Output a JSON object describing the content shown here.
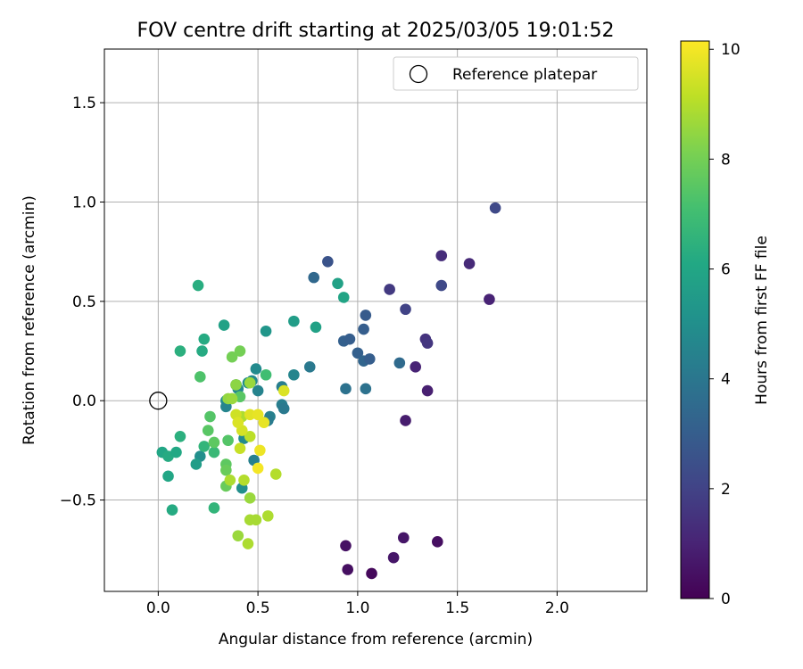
{
  "chart_data": {
    "type": "scatter",
    "title": "FOV centre drift starting at 2025/03/05 19:01:52",
    "xlabel": "Angular distance from reference (arcmin)",
    "ylabel": "Rotation from reference (arcmin)",
    "xlim": [
      -0.27,
      2.45
    ],
    "ylim": [
      -0.96,
      1.77
    ],
    "xticks": [
      0.0,
      0.5,
      1.0,
      1.5,
      2.0
    ],
    "xtick_labels": [
      "0.0",
      "0.5",
      "1.0",
      "1.5",
      "2.0"
    ],
    "yticks": [
      -0.5,
      0.0,
      0.5,
      1.0,
      1.5
    ],
    "ytick_labels": [
      "−0.5",
      "0.0",
      "0.5",
      "1.0",
      "1.5"
    ],
    "grid": true,
    "legend": {
      "placement": "top-right",
      "label": "Reference platepar"
    },
    "reference_point": {
      "x": 0.0,
      "y": 0.0
    },
    "colorbar": {
      "label": "Hours from first FF file",
      "range": [
        0,
        10.15
      ],
      "ticks": [
        0,
        2,
        4,
        6,
        8,
        10
      ],
      "tick_labels": [
        "0",
        "2",
        "4",
        "6",
        "8",
        "10"
      ],
      "colormap": "viridis"
    },
    "points": [
      {
        "x": 1.07,
        "y": -0.87,
        "h": 0.2
      },
      {
        "x": 0.95,
        "y": -0.85,
        "h": 0.4
      },
      {
        "x": 0.94,
        "y": -0.73,
        "h": 0.5
      },
      {
        "x": 1.18,
        "y": -0.79,
        "h": 0.6
      },
      {
        "x": 1.23,
        "y": -0.69,
        "h": 0.6
      },
      {
        "x": 1.4,
        "y": -0.71,
        "h": 0.4
      },
      {
        "x": 1.24,
        "y": -0.1,
        "h": 0.8
      },
      {
        "x": 1.35,
        "y": 0.05,
        "h": 0.9
      },
      {
        "x": 1.29,
        "y": 0.17,
        "h": 1.0
      },
      {
        "x": 1.34,
        "y": 0.31,
        "h": 1.5
      },
      {
        "x": 1.35,
        "y": 0.29,
        "h": 1.6
      },
      {
        "x": 1.66,
        "y": 0.51,
        "h": 1.0
      },
      {
        "x": 1.56,
        "y": 0.69,
        "h": 1.2
      },
      {
        "x": 1.42,
        "y": 0.73,
        "h": 1.3
      },
      {
        "x": 1.69,
        "y": 0.97,
        "h": 2.2
      },
      {
        "x": 1.42,
        "y": 0.58,
        "h": 2.2
      },
      {
        "x": 1.24,
        "y": 0.46,
        "h": 2.0
      },
      {
        "x": 1.16,
        "y": 0.56,
        "h": 1.7
      },
      {
        "x": 0.85,
        "y": 0.7,
        "h": 2.6
      },
      {
        "x": 1.04,
        "y": 0.43,
        "h": 2.9
      },
      {
        "x": 1.03,
        "y": 0.36,
        "h": 3.0
      },
      {
        "x": 0.93,
        "y": 0.3,
        "h": 3.1
      },
      {
        "x": 0.96,
        "y": 0.31,
        "h": 3.0
      },
      {
        "x": 1.0,
        "y": 0.24,
        "h": 3.1
      },
      {
        "x": 1.03,
        "y": 0.2,
        "h": 3.3
      },
      {
        "x": 1.06,
        "y": 0.21,
        "h": 3.0
      },
      {
        "x": 1.21,
        "y": 0.19,
        "h": 3.5
      },
      {
        "x": 0.78,
        "y": 0.62,
        "h": 3.4
      },
      {
        "x": 0.94,
        "y": 0.06,
        "h": 3.8
      },
      {
        "x": 1.04,
        "y": 0.06,
        "h": 3.8
      },
      {
        "x": 0.76,
        "y": 0.17,
        "h": 4.1
      },
      {
        "x": 0.68,
        "y": 0.13,
        "h": 4.6
      },
      {
        "x": 0.62,
        "y": 0.07,
        "h": 4.3
      },
      {
        "x": 0.62,
        "y": -0.02,
        "h": 4.3
      },
      {
        "x": 0.63,
        "y": -0.04,
        "h": 4.1
      },
      {
        "x": 0.56,
        "y": -0.08,
        "h": 4.4
      },
      {
        "x": 0.55,
        "y": -0.1,
        "h": 4.2
      },
      {
        "x": 0.5,
        "y": 0.05,
        "h": 4.5
      },
      {
        "x": 0.49,
        "y": 0.16,
        "h": 4.8
      },
      {
        "x": 0.47,
        "y": 0.1,
        "h": 4.8
      },
      {
        "x": 0.45,
        "y": 0.09,
        "h": 5.0
      },
      {
        "x": 0.4,
        "y": 0.06,
        "h": 4.7
      },
      {
        "x": 0.39,
        "y": 0.08,
        "h": 5.0
      },
      {
        "x": 0.34,
        "y": 0.0,
        "h": 4.9
      },
      {
        "x": 0.34,
        "y": -0.03,
        "h": 4.6
      },
      {
        "x": 0.48,
        "y": -0.3,
        "h": 4.4
      },
      {
        "x": 0.43,
        "y": -0.19,
        "h": 4.8
      },
      {
        "x": 0.42,
        "y": -0.44,
        "h": 5.0
      },
      {
        "x": 0.21,
        "y": -0.28,
        "h": 5.0
      },
      {
        "x": 0.19,
        "y": -0.32,
        "h": 5.6
      },
      {
        "x": 0.54,
        "y": 0.35,
        "h": 5.3
      },
      {
        "x": 0.68,
        "y": 0.4,
        "h": 5.6
      },
      {
        "x": 0.79,
        "y": 0.37,
        "h": 5.8
      },
      {
        "x": 0.9,
        "y": 0.59,
        "h": 5.8
      },
      {
        "x": 0.93,
        "y": 0.52,
        "h": 5.9
      },
      {
        "x": 0.33,
        "y": 0.38,
        "h": 5.8
      },
      {
        "x": 0.2,
        "y": 0.58,
        "h": 6.3
      },
      {
        "x": 0.23,
        "y": 0.31,
        "h": 6.2
      },
      {
        "x": 0.22,
        "y": 0.25,
        "h": 6.2
      },
      {
        "x": 0.11,
        "y": 0.25,
        "h": 6.4
      },
      {
        "x": 0.02,
        "y": -0.26,
        "h": 6.0
      },
      {
        "x": 0.05,
        "y": -0.28,
        "h": 6.2
      },
      {
        "x": 0.09,
        "y": -0.26,
        "h": 6.1
      },
      {
        "x": 0.11,
        "y": -0.18,
        "h": 6.4
      },
      {
        "x": 0.05,
        "y": -0.38,
        "h": 6.0
      },
      {
        "x": 0.07,
        "y": -0.55,
        "h": 6.2
      },
      {
        "x": 0.23,
        "y": -0.23,
        "h": 6.6
      },
      {
        "x": 0.28,
        "y": -0.26,
        "h": 6.8
      },
      {
        "x": 0.28,
        "y": -0.54,
        "h": 6.6
      },
      {
        "x": 0.54,
        "y": 0.13,
        "h": 7.0
      },
      {
        "x": 0.21,
        "y": 0.12,
        "h": 7.3
      },
      {
        "x": 0.41,
        "y": 0.02,
        "h": 7.5
      },
      {
        "x": 0.26,
        "y": -0.08,
        "h": 7.4
      },
      {
        "x": 0.25,
        "y": -0.15,
        "h": 7.5
      },
      {
        "x": 0.28,
        "y": -0.21,
        "h": 7.6
      },
      {
        "x": 0.34,
        "y": -0.32,
        "h": 7.6
      },
      {
        "x": 0.34,
        "y": -0.35,
        "h": 7.8
      },
      {
        "x": 0.34,
        "y": -0.43,
        "h": 7.8
      },
      {
        "x": 0.35,
        "y": -0.2,
        "h": 7.4
      },
      {
        "x": 0.37,
        "y": 0.22,
        "h": 8.0
      },
      {
        "x": 0.41,
        "y": 0.25,
        "h": 8.0
      },
      {
        "x": 0.39,
        "y": 0.08,
        "h": 8.4
      },
      {
        "x": 0.35,
        "y": 0.01,
        "h": 8.5
      },
      {
        "x": 0.37,
        "y": 0.01,
        "h": 8.6
      },
      {
        "x": 0.46,
        "y": 0.09,
        "h": 8.6
      },
      {
        "x": 0.42,
        "y": -0.08,
        "h": 8.9
      },
      {
        "x": 0.36,
        "y": -0.4,
        "h": 8.9
      },
      {
        "x": 0.43,
        "y": -0.4,
        "h": 9.0
      },
      {
        "x": 0.46,
        "y": -0.49,
        "h": 8.6
      },
      {
        "x": 0.4,
        "y": -0.68,
        "h": 8.6
      },
      {
        "x": 0.46,
        "y": -0.6,
        "h": 8.8
      },
      {
        "x": 0.49,
        "y": -0.6,
        "h": 8.8
      },
      {
        "x": 0.45,
        "y": -0.72,
        "h": 8.9
      },
      {
        "x": 0.55,
        "y": -0.58,
        "h": 8.9
      },
      {
        "x": 0.59,
        "y": -0.37,
        "h": 9.0
      },
      {
        "x": 0.46,
        "y": -0.18,
        "h": 9.1
      },
      {
        "x": 0.41,
        "y": -0.24,
        "h": 9.3
      },
      {
        "x": 0.39,
        "y": -0.07,
        "h": 9.4
      },
      {
        "x": 0.42,
        "y": -0.15,
        "h": 9.5
      },
      {
        "x": 0.4,
        "y": -0.11,
        "h": 9.6
      },
      {
        "x": 0.46,
        "y": -0.07,
        "h": 9.7
      },
      {
        "x": 0.5,
        "y": -0.07,
        "h": 9.8
      },
      {
        "x": 0.53,
        "y": -0.11,
        "h": 9.8
      },
      {
        "x": 0.51,
        "y": -0.25,
        "h": 9.9
      },
      {
        "x": 0.5,
        "y": -0.34,
        "h": 10.0
      },
      {
        "x": 0.63,
        "y": 0.05,
        "h": 9.6
      }
    ]
  }
}
